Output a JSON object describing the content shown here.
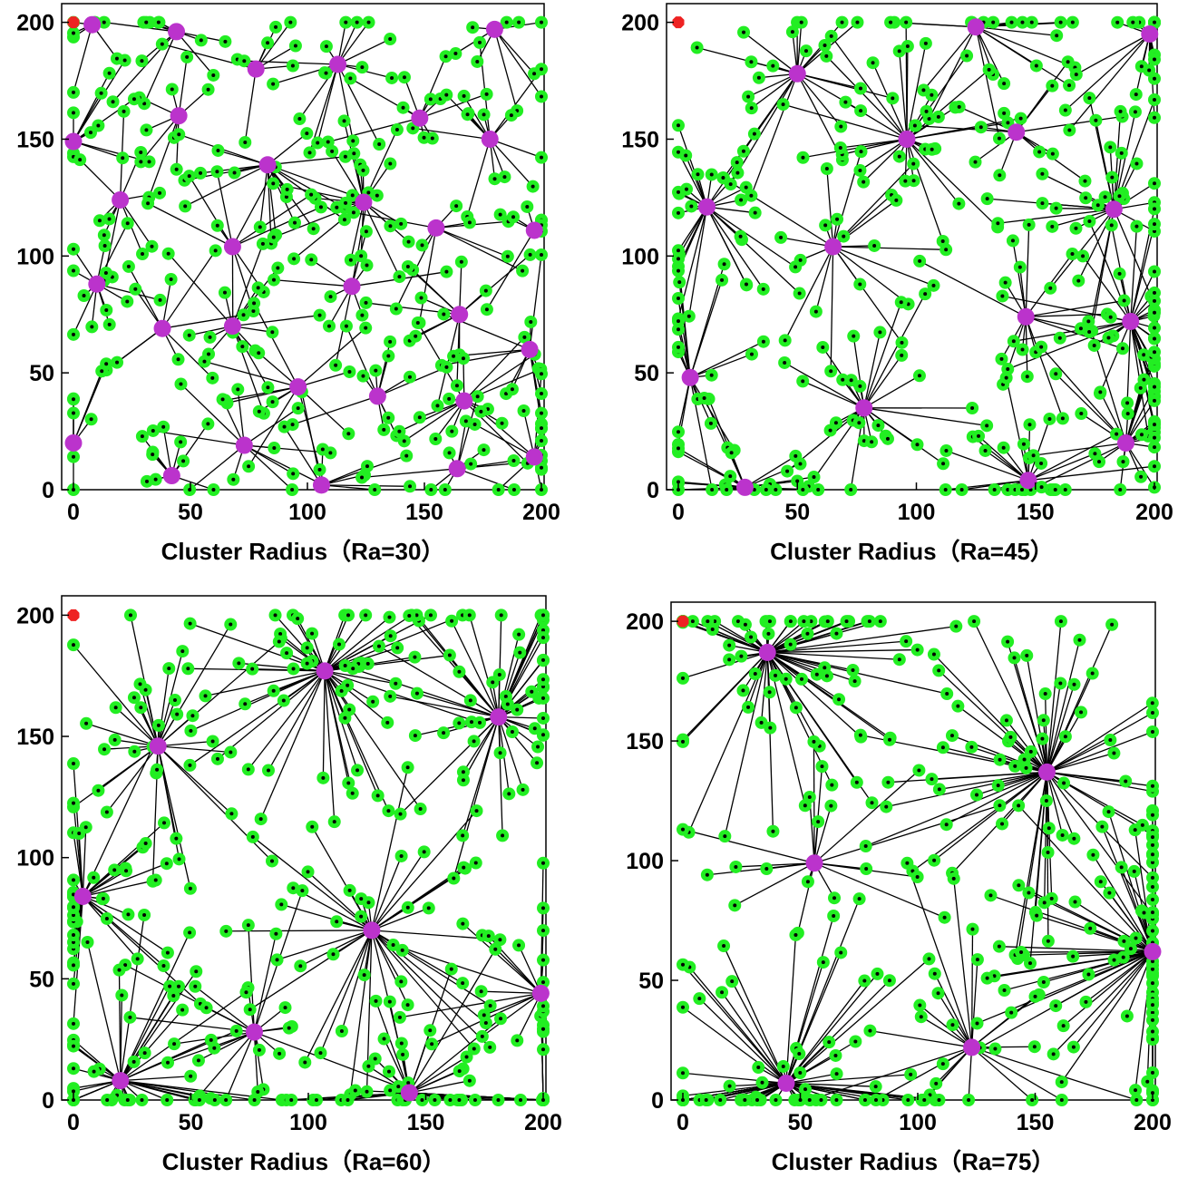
{
  "chart_data": [
    {
      "type": "scatter",
      "title": "",
      "xlabel": "Cluster Radius（Ra=30）",
      "ylabel": "",
      "xlim": [
        -5,
        202
      ],
      "ylim": [
        0,
        208
      ],
      "xticks": [
        0,
        50,
        100,
        150,
        200
      ],
      "yticks": [
        0,
        50,
        100,
        150,
        200
      ],
      "grid": false,
      "base_station": [
        0,
        200
      ],
      "cluster_heads": [
        [
          8,
          199
        ],
        [
          44,
          196
        ],
        [
          78,
          180
        ],
        [
          113,
          182
        ],
        [
          180,
          197
        ],
        [
          148,
          159
        ],
        [
          45,
          160
        ],
        [
          0,
          149
        ],
        [
          20,
          124
        ],
        [
          83,
          139
        ],
        [
          124,
          123
        ],
        [
          178,
          150
        ],
        [
          155,
          112
        ],
        [
          197,
          111
        ],
        [
          68,
          104
        ],
        [
          10,
          88
        ],
        [
          119,
          87
        ],
        [
          165,
          75
        ],
        [
          38,
          69
        ],
        [
          68,
          70
        ],
        [
          195,
          60
        ],
        [
          96,
          44
        ],
        [
          130,
          40
        ],
        [
          167,
          38
        ],
        [
          0,
          20
        ],
        [
          73,
          19
        ],
        [
          42,
          6
        ],
        [
          106,
          2
        ],
        [
          164,
          9
        ],
        [
          197,
          14
        ]
      ],
      "members_per_cluster": [
        6,
        12,
        8,
        16,
        9,
        10,
        9,
        12,
        10,
        18,
        20,
        14,
        9,
        8,
        10,
        13,
        10,
        12,
        9,
        14,
        11,
        12,
        11,
        14,
        8,
        12,
        10,
        8,
        11,
        12
      ],
      "colors": {
        "member": "#22ee22",
        "cluster_head": "#bb33cc",
        "base_station": "#ee2222",
        "link": "#000000"
      }
    },
    {
      "type": "scatter",
      "title": "",
      "xlabel": "Cluster Radius（Ra=45）",
      "ylabel": "",
      "xlim": [
        -5,
        202
      ],
      "ylim": [
        0,
        208
      ],
      "xticks": [
        0,
        50,
        100,
        150,
        200
      ],
      "yticks": [
        0,
        50,
        100,
        150,
        200
      ],
      "grid": false,
      "base_station": [
        0,
        200
      ],
      "cluster_heads": [
        [
          50,
          178
        ],
        [
          125,
          198
        ],
        [
          198,
          195
        ],
        [
          96,
          150
        ],
        [
          142,
          153
        ],
        [
          12,
          121
        ],
        [
          183,
          120
        ],
        [
          65,
          104
        ],
        [
          146,
          74
        ],
        [
          190,
          72
        ],
        [
          5,
          48
        ],
        [
          78,
          35
        ],
        [
          28,
          1
        ],
        [
          147,
          4
        ],
        [
          188,
          20
        ]
      ],
      "members_per_cluster": [
        24,
        20,
        18,
        32,
        12,
        28,
        30,
        20,
        16,
        36,
        18,
        28,
        22,
        26,
        26
      ],
      "colors": {
        "member": "#22ee22",
        "cluster_head": "#bb33cc",
        "base_station": "#ee2222",
        "link": "#000000"
      }
    },
    {
      "type": "scatter",
      "title": "",
      "xlabel": "Cluster Radius（Ra=60）",
      "ylabel": "",
      "xlim": [
        -5,
        202
      ],
      "ylim": [
        0,
        208
      ],
      "xticks": [
        0,
        50,
        100,
        150,
        200
      ],
      "yticks": [
        0,
        50,
        100,
        150,
        200
      ],
      "grid": false,
      "base_station": [
        0,
        200
      ],
      "cluster_heads": [
        [
          107,
          177
        ],
        [
          181,
          158
        ],
        [
          36,
          146
        ],
        [
          4,
          84
        ],
        [
          127,
          70
        ],
        [
          199,
          44
        ],
        [
          77,
          28
        ],
        [
          20,
          8
        ],
        [
          143,
          3
        ]
      ],
      "members_per_cluster": [
        58,
        56,
        32,
        42,
        40,
        26,
        22,
        42,
        40
      ],
      "colors": {
        "member": "#22ee22",
        "cluster_head": "#bb33cc",
        "base_station": "#ee2222",
        "link": "#000000"
      }
    },
    {
      "type": "scatter",
      "title": "",
      "xlabel": "Cluster Radius（Ra=75）",
      "ylabel": "",
      "xlim": [
        -5,
        202
      ],
      "ylim": [
        0,
        208
      ],
      "xticks": [
        0,
        50,
        100,
        150,
        200
      ],
      "yticks": [
        0,
        50,
        100,
        150,
        200
      ],
      "grid": false,
      "base_station": [
        0,
        200
      ],
      "cluster_heads": [
        [
          36,
          187
        ],
        [
          155,
          137
        ],
        [
          56,
          99
        ],
        [
          200,
          62
        ],
        [
          44,
          7
        ],
        [
          123,
          22
        ]
      ],
      "members_per_cluster": [
        70,
        68,
        18,
        80,
        64,
        24
      ],
      "colors": {
        "member": "#22ee22",
        "cluster_head": "#bb33cc",
        "base_station": "#ee2222",
        "link": "#000000"
      }
    }
  ]
}
